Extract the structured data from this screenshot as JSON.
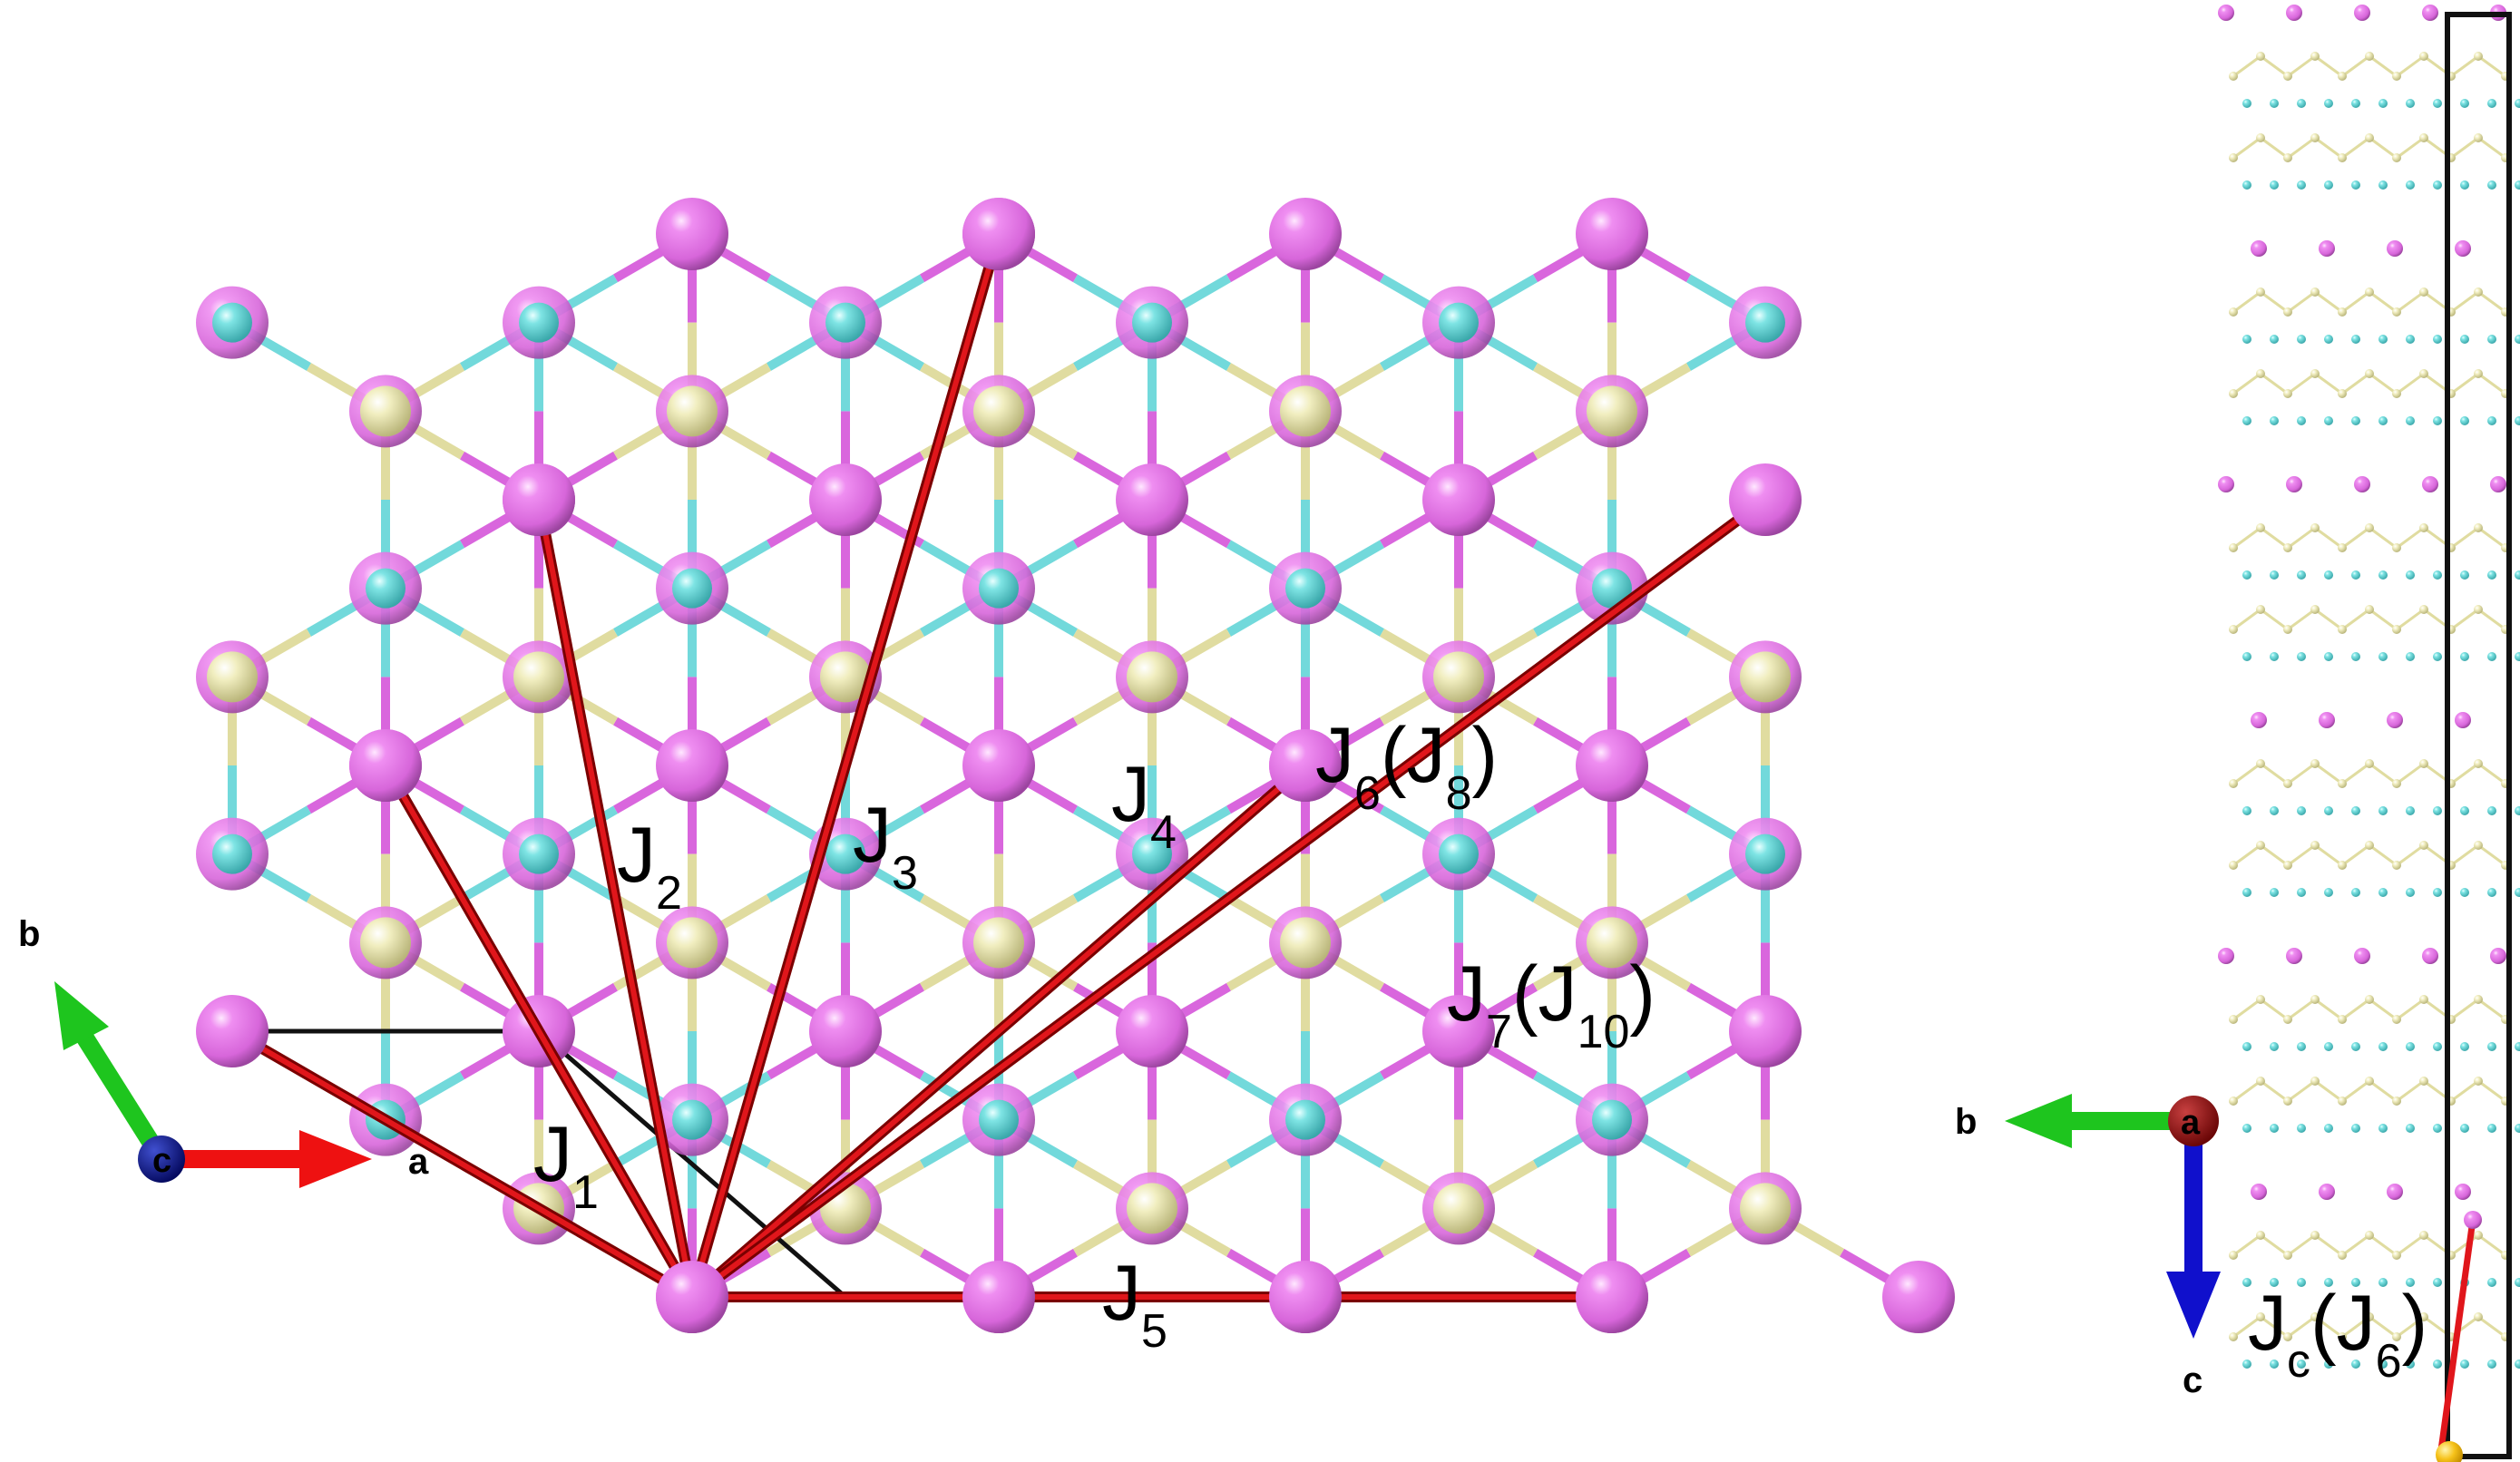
{
  "structure": {
    "atom_colors": {
      "magenta": "#d966dd",
      "magenta_edge": "#8e3c93",
      "cyan": "#5fd6d6",
      "cyan_edge": "#2f8f92",
      "cream": "#ece9b0",
      "cream_edge": "#a49f5c",
      "yellow": "#f5c518"
    },
    "bond_colors": {
      "cyan": "#72d9db",
      "cream": "#e0dca0"
    },
    "exchange_bond_color": "#e0161b",
    "cell_edge_color": "#111111"
  },
  "plane_view": {
    "axes": {
      "a": {
        "label": "a",
        "color": "#ee1111"
      },
      "b": {
        "label": "b",
        "color": "#1ec51e"
      },
      "c": {
        "label": "c",
        "color": "#101a9e"
      }
    },
    "exchange_labels": [
      {
        "main": "J",
        "sub": "1",
        "tail": ""
      },
      {
        "main": "J",
        "sub": "2",
        "tail": ""
      },
      {
        "main": "J",
        "sub": "3",
        "tail": ""
      },
      {
        "main": "J",
        "sub": "4",
        "tail": ""
      },
      {
        "main": "J",
        "sub": "5",
        "tail": ""
      },
      {
        "main": "J",
        "sub": "6",
        "paren": "(J",
        "psub": "8",
        "close": ")"
      },
      {
        "main": "J",
        "sub": "7",
        "paren": "(J",
        "psub": "10",
        "close": ")"
      }
    ]
  },
  "side_view": {
    "axes": {
      "a": {
        "label": "a",
        "color": "#8b0b0b"
      },
      "b": {
        "label": "b",
        "color": "#1ec51e"
      },
      "c": {
        "label": "c",
        "color": "#1010cc"
      }
    },
    "exchange_label": {
      "main": "J",
      "sub": "c",
      "paren": "(J",
      "psub": "6",
      "close": ")"
    }
  }
}
